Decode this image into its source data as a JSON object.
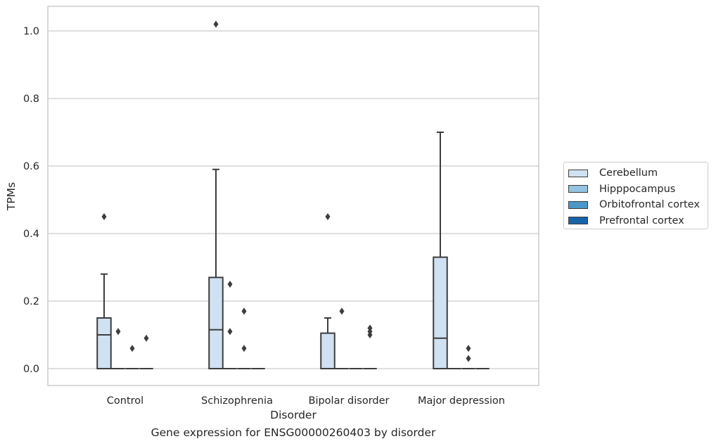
{
  "chart_data": {
    "type": "box",
    "xlabel": "Disorder",
    "ylabel": "TPMs",
    "caption": "Gene expression for ENSG00000260403 by disorder",
    "ylim": [
      -0.05,
      1.07
    ],
    "yticks": [
      0.0,
      0.2,
      0.4,
      0.6,
      0.8,
      1.0
    ],
    "ytick_labels": [
      "0.0",
      "0.2",
      "0.4",
      "0.6",
      "0.8",
      "1.0"
    ],
    "grid": "horizontal",
    "legend_position": "right, outside plot",
    "categories": [
      "Control",
      "Schizophrenia",
      "Bipolar disorder",
      "Major depression"
    ],
    "series": [
      {
        "name": "Cerebellum",
        "color": "#d0e1f2",
        "boxes": [
          {
            "whisker_low": 0.0,
            "q1": 0.0,
            "median": 0.1,
            "q3": 0.15,
            "whisker_high": 0.28,
            "outliers": [
              0.45
            ]
          },
          {
            "whisker_low": 0.0,
            "q1": 0.0,
            "median": 0.115,
            "q3": 0.27,
            "whisker_high": 0.59,
            "outliers": [
              1.02
            ]
          },
          {
            "whisker_low": 0.0,
            "q1": 0.0,
            "median": 0.0,
            "q3": 0.105,
            "whisker_high": 0.15,
            "outliers": [
              0.45
            ]
          },
          {
            "whisker_low": 0.0,
            "q1": 0.0,
            "median": 0.09,
            "q3": 0.33,
            "whisker_high": 0.7,
            "outliers": []
          }
        ]
      },
      {
        "name": "Hipppocampus",
        "color": "#94c4df",
        "boxes": [
          {
            "whisker_low": 0.0,
            "q1": 0.0,
            "median": 0.0,
            "q3": 0.0,
            "whisker_high": 0.0,
            "outliers": [
              0.11
            ]
          },
          {
            "whisker_low": 0.0,
            "q1": 0.0,
            "median": 0.0,
            "q3": 0.0,
            "whisker_high": 0.0,
            "outliers": [
              0.25,
              0.11
            ]
          },
          {
            "whisker_low": 0.0,
            "q1": 0.0,
            "median": 0.0,
            "q3": 0.0,
            "whisker_high": 0.0,
            "outliers": [
              0.17
            ]
          },
          {
            "whisker_low": 0.0,
            "q1": 0.0,
            "median": 0.0,
            "q3": 0.0,
            "whisker_high": 0.0,
            "outliers": []
          }
        ]
      },
      {
        "name": "Orbitofrontal cortex",
        "color": "#4a98c9",
        "boxes": [
          {
            "whisker_low": 0.0,
            "q1": 0.0,
            "median": 0.0,
            "q3": 0.0,
            "whisker_high": 0.0,
            "outliers": [
              0.06
            ]
          },
          {
            "whisker_low": 0.0,
            "q1": 0.0,
            "median": 0.0,
            "q3": 0.0,
            "whisker_high": 0.0,
            "outliers": [
              0.17,
              0.06
            ]
          },
          {
            "whisker_low": 0.0,
            "q1": 0.0,
            "median": 0.0,
            "q3": 0.0,
            "whisker_high": 0.0,
            "outliers": []
          },
          {
            "whisker_low": 0.0,
            "q1": 0.0,
            "median": 0.0,
            "q3": 0.0,
            "whisker_high": 0.0,
            "outliers": [
              0.06,
              0.03
            ]
          }
        ]
      },
      {
        "name": "Prefrontal cortex",
        "color": "#1764ab",
        "boxes": [
          {
            "whisker_low": 0.0,
            "q1": 0.0,
            "median": 0.0,
            "q3": 0.0,
            "whisker_high": 0.0,
            "outliers": [
              0.09
            ]
          },
          {
            "whisker_low": 0.0,
            "q1": 0.0,
            "median": 0.0,
            "q3": 0.0,
            "whisker_high": 0.0,
            "outliers": []
          },
          {
            "whisker_low": 0.0,
            "q1": 0.0,
            "median": 0.0,
            "q3": 0.0,
            "whisker_high": 0.0,
            "outliers": [
              0.12,
              0.11,
              0.1
            ]
          },
          {
            "whisker_low": 0.0,
            "q1": 0.0,
            "median": 0.0,
            "q3": 0.0,
            "whisker_high": 0.0,
            "outliers": []
          }
        ]
      }
    ]
  }
}
